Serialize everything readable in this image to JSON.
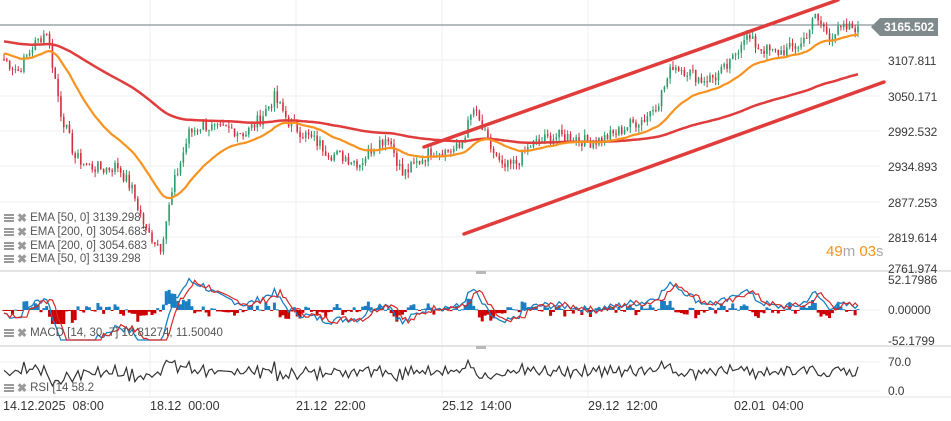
{
  "chart_data": [
    {
      "type": "line",
      "title": "Price chart (candlestick) with EMA overlays and channel trendlines",
      "y_axis": {
        "ticks": [
          3107.811,
          3050.171,
          2992.532,
          2934.893,
          2877.253,
          2819.614,
          2761.974
        ],
        "ylim": [
          2761.974,
          3180
        ]
      },
      "x_axis": {
        "ticks": [
          "14.12.2025 08:00",
          "18.12 00:00",
          "21.12 22:00",
          "25.12 14:00",
          "29.12 12:00",
          "02.01 04:00"
        ]
      },
      "current_price": 3165.502,
      "grid": true,
      "series": [
        {
          "name": "Price (approx close)",
          "color": "#2a9d6a",
          "x": [
            0,
            1,
            2,
            3,
            4,
            5,
            6,
            7,
            8,
            9,
            10,
            11,
            12,
            13,
            14,
            15,
            16,
            17,
            18,
            19,
            20,
            21,
            22,
            23,
            24,
            25,
            26,
            27,
            28,
            29,
            30,
            31,
            32,
            33,
            34,
            35,
            36,
            37,
            38,
            39,
            40,
            41,
            42,
            43,
            44,
            45,
            46,
            47,
            48,
            49,
            50,
            51,
            52,
            53,
            54,
            55,
            56,
            57,
            58,
            59,
            60
          ],
          "values": [
            3110,
            3090,
            3130,
            3158,
            3020,
            2945,
            2930,
            2925,
            2930,
            2890,
            2820,
            2795,
            2905,
            2985,
            3000,
            2990,
            2992,
            2985,
            3010,
            3045,
            3005,
            2985,
            2970,
            2950,
            2945,
            2935,
            2965,
            2980,
            2915,
            2935,
            2955,
            2955,
            2960,
            3025,
            2970,
            2925,
            2935,
            2965,
            2975,
            2980,
            2980,
            2970,
            2975,
            2985,
            3000,
            3010,
            3040,
            3100,
            3090,
            3075,
            3080,
            3100,
            3150,
            3130,
            3120,
            3125,
            3135,
            3180,
            3150,
            3160,
            3165
          ]
        },
        {
          "name": "EMA [50, 0]",
          "value": 3139.298,
          "color": "#f7931e"
        },
        {
          "name": "EMA [200, 0]",
          "value": 3054.683,
          "color": "#e03c3c"
        }
      ],
      "trendlines": [
        {
          "name": "channel-upper",
          "color": "#e03c3c",
          "from": [
            424,
            147
          ],
          "to": [
            838,
            0
          ]
        },
        {
          "name": "channel-lower",
          "color": "#e03c3c",
          "from": [
            464,
            234
          ],
          "to": [
            884,
            82
          ]
        }
      ]
    },
    {
      "type": "bar",
      "title": "MACD [14, 30, 7]",
      "values_shown": [
        10.81274,
        11.5004
      ],
      "y_axis": {
        "ticks": [
          52.17986,
          0.0,
          -52.1799
        ]
      },
      "series": [
        {
          "name": "MACD line",
          "color": "#1a7fc1"
        },
        {
          "name": "Signal line",
          "color": "#d62828"
        },
        {
          "name": "Histogram positive",
          "color": "#1a7fc1"
        },
        {
          "name": "Histogram negative",
          "color": "#cc0000"
        }
      ]
    },
    {
      "type": "line",
      "title": "RSI [14]",
      "value_shown": 58.2,
      "y_axis": {
        "ticks": [
          70.0,
          0.0
        ]
      },
      "series": [
        {
          "name": "RSI",
          "color": "#333333"
        }
      ]
    }
  ],
  "price_axis": {
    "current_price_badge": "3165.502",
    "ticks": [
      "3107.811",
      "3050.171",
      "2992.532",
      "2934.893",
      "2877.253",
      "2819.614",
      "2761.974"
    ]
  },
  "macd_axis": {
    "ticks": [
      "52.17986",
      "0.00000",
      "-52.1799"
    ]
  },
  "rsi_axis": {
    "ticks": [
      "70.0",
      "0.0"
    ]
  },
  "time_axis": {
    "labels": [
      "14.12.2025",
      "08:00",
      "18.12",
      "00:00",
      "21.12",
      "22:00",
      "25.12",
      "14:00",
      "29.12",
      "12:00",
      "02.01",
      "04:00"
    ]
  },
  "legend": {
    "items": [
      {
        "label": "EMA [50,  0]  3139.298"
      },
      {
        "label": "EMA [200,  0]  3054.683"
      },
      {
        "label": "EMA [200,  0]  3054.683"
      },
      {
        "label": "EMA [50,  0]  3139.298"
      }
    ],
    "macd": "MACD [14,  30,  7]  10.81274,   11.50040",
    "rsi": "RSI [14   58.2"
  },
  "timer": {
    "minutes": "49",
    "minutes_unit": "m",
    "seconds": "03",
    "seconds_unit": "s"
  },
  "colors": {
    "ema50": "#f7931e",
    "ema200": "#e03c3c",
    "trendline": "#e03c3c",
    "candle_up": "#2a9d6a",
    "candle_down": "#d32f3f",
    "macd": "#1a7fc1",
    "signal": "#d62828",
    "rsi": "#333333",
    "badge": "#7f8a8c"
  }
}
